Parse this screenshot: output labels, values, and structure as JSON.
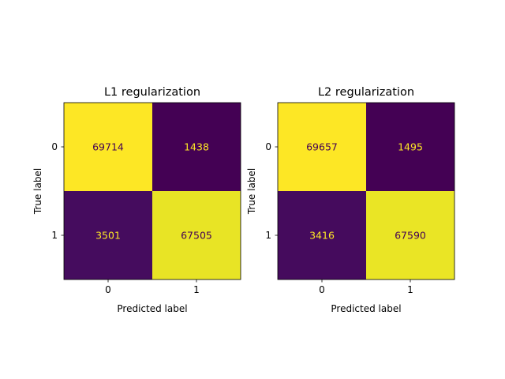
{
  "chart_data": [
    {
      "type": "heatmap",
      "title": "L1 regularization",
      "xlabel": "Predicted label",
      "ylabel": "True label",
      "x_ticks": [
        "0",
        "1"
      ],
      "y_ticks": [
        "0",
        "1"
      ],
      "matrix": [
        [
          69714,
          1438
        ],
        [
          3501,
          67505
        ]
      ],
      "colormap": "viridis",
      "grid": false
    },
    {
      "type": "heatmap",
      "title": "L2 regularization",
      "xlabel": "Predicted label",
      "ylabel": "True label",
      "x_ticks": [
        "0",
        "1"
      ],
      "y_ticks": [
        "0",
        "1"
      ],
      "matrix": [
        [
          69657,
          1495
        ],
        [
          3416,
          67590
        ]
      ],
      "colormap": "viridis",
      "grid": false
    }
  ]
}
